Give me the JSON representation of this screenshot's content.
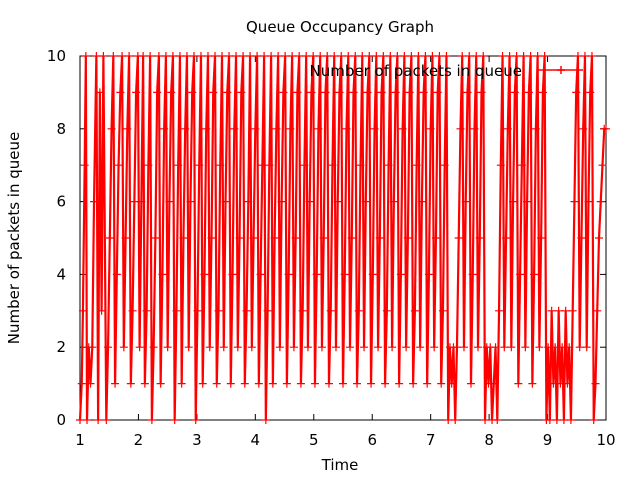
{
  "chart_data": {
    "type": "line",
    "title": "Queue Occupancy Graph",
    "xlabel": "Time",
    "ylabel": "Number of packets in queue",
    "xlim": [
      1,
      10
    ],
    "ylim": [
      0,
      10
    ],
    "x_ticks": [
      "1",
      "2",
      "3",
      "4",
      "5",
      "6",
      "7",
      "8",
      "9",
      "10"
    ],
    "y_ticks": [
      "0",
      "2",
      "4",
      "6",
      "8",
      "10"
    ],
    "grid": false,
    "legend_position": "top-right",
    "marker": "plus",
    "series": [
      {
        "name": "Number of packets in queue",
        "color": "#ff0000",
        "points": [
          [
            1.0,
            0
          ],
          [
            1.03,
            1
          ],
          [
            1.05,
            3
          ],
          [
            1.08,
            7
          ],
          [
            1.1,
            10
          ],
          [
            1.12,
            0
          ],
          [
            1.15,
            2
          ],
          [
            1.18,
            1
          ],
          [
            1.21,
            2
          ],
          [
            1.24,
            6
          ],
          [
            1.28,
            10
          ],
          [
            1.31,
            0
          ],
          [
            1.34,
            9
          ],
          [
            1.37,
            3
          ],
          [
            1.4,
            10
          ],
          [
            1.45,
            0
          ],
          [
            1.48,
            2
          ],
          [
            1.51,
            5
          ],
          [
            1.54,
            8
          ],
          [
            1.57,
            10
          ],
          [
            1.6,
            1
          ],
          [
            1.63,
            4
          ],
          [
            1.66,
            7
          ],
          [
            1.69,
            9
          ],
          [
            1.72,
            10
          ],
          [
            1.75,
            2
          ],
          [
            1.78,
            5
          ],
          [
            1.81,
            8
          ],
          [
            1.84,
            10
          ],
          [
            1.87,
            1
          ],
          [
            1.9,
            3
          ],
          [
            1.93,
            6
          ],
          [
            1.96,
            9
          ],
          [
            1.99,
            10
          ],
          [
            2.02,
            2
          ],
          [
            2.05,
            6
          ],
          [
            2.08,
            10
          ],
          [
            2.11,
            1
          ],
          [
            2.14,
            3
          ],
          [
            2.17,
            7
          ],
          [
            2.2,
            10
          ],
          [
            2.23,
            0
          ],
          [
            2.26,
            2
          ],
          [
            2.29,
            5
          ],
          [
            2.32,
            9
          ],
          [
            2.35,
            10
          ],
          [
            2.38,
            1
          ],
          [
            2.41,
            4
          ],
          [
            2.44,
            8
          ],
          [
            2.47,
            10
          ],
          [
            2.5,
            2
          ],
          [
            2.53,
            6
          ],
          [
            2.56,
            9
          ],
          [
            2.59,
            10
          ],
          [
            2.62,
            0
          ],
          [
            2.65,
            3
          ],
          [
            2.68,
            7
          ],
          [
            2.71,
            10
          ],
          [
            2.74,
            1
          ],
          [
            2.77,
            5
          ],
          [
            2.8,
            8
          ],
          [
            2.83,
            10
          ],
          [
            2.86,
            2
          ],
          [
            2.89,
            6
          ],
          [
            2.92,
            9
          ],
          [
            2.95,
            10
          ],
          [
            2.98,
            0
          ],
          [
            3.01,
            3
          ],
          [
            3.04,
            7
          ],
          [
            3.07,
            10
          ],
          [
            3.1,
            1
          ],
          [
            3.13,
            4
          ],
          [
            3.16,
            8
          ],
          [
            3.19,
            10
          ],
          [
            3.22,
            2
          ],
          [
            3.25,
            5
          ],
          [
            3.28,
            9
          ],
          [
            3.31,
            10
          ],
          [
            3.34,
            1
          ],
          [
            3.37,
            3
          ],
          [
            3.4,
            7
          ],
          [
            3.43,
            10
          ],
          [
            3.46,
            2
          ],
          [
            3.49,
            6
          ],
          [
            3.52,
            9
          ],
          [
            3.55,
            10
          ],
          [
            3.58,
            1
          ],
          [
            3.61,
            4
          ],
          [
            3.64,
            8
          ],
          [
            3.67,
            10
          ],
          [
            3.7,
            2
          ],
          [
            3.73,
            5
          ],
          [
            3.76,
            9
          ],
          [
            3.79,
            10
          ],
          [
            3.82,
            1
          ],
          [
            3.85,
            3
          ],
          [
            3.88,
            6
          ],
          [
            3.91,
            10
          ],
          [
            3.94,
            2
          ],
          [
            3.97,
            5
          ],
          [
            4.0,
            8
          ],
          [
            4.03,
            10
          ],
          [
            4.06,
            1
          ],
          [
            4.09,
            4
          ],
          [
            4.12,
            7
          ],
          [
            4.15,
            10
          ],
          [
            4.18,
            0
          ],
          [
            4.21,
            3
          ],
          [
            4.24,
            7
          ],
          [
            4.27,
            10
          ],
          [
            4.3,
            1
          ],
          [
            4.33,
            5
          ],
          [
            4.36,
            8
          ],
          [
            4.39,
            10
          ],
          [
            4.42,
            2
          ],
          [
            4.45,
            6
          ],
          [
            4.48,
            9
          ],
          [
            4.51,
            10
          ],
          [
            4.54,
            1
          ],
          [
            4.57,
            4
          ],
          [
            4.6,
            8
          ],
          [
            4.63,
            10
          ],
          [
            4.66,
            2
          ],
          [
            4.69,
            5
          ],
          [
            4.72,
            9
          ],
          [
            4.75,
            10
          ],
          [
            4.78,
            1
          ],
          [
            4.81,
            3
          ],
          [
            4.84,
            7
          ],
          [
            4.87,
            10
          ],
          [
            4.9,
            2
          ],
          [
            4.93,
            6
          ],
          [
            4.96,
            9
          ],
          [
            4.99,
            10
          ],
          [
            5.02,
            1
          ],
          [
            5.05,
            4
          ],
          [
            5.08,
            8
          ],
          [
            5.11,
            10
          ],
          [
            5.14,
            2
          ],
          [
            5.17,
            5
          ],
          [
            5.2,
            9
          ],
          [
            5.23,
            10
          ],
          [
            5.26,
            1
          ],
          [
            5.29,
            3
          ],
          [
            5.32,
            7
          ],
          [
            5.35,
            10
          ],
          [
            5.38,
            2
          ],
          [
            5.41,
            6
          ],
          [
            5.44,
            9
          ],
          [
            5.47,
            10
          ],
          [
            5.5,
            1
          ],
          [
            5.53,
            4
          ],
          [
            5.56,
            8
          ],
          [
            5.59,
            10
          ],
          [
            5.62,
            2
          ],
          [
            5.65,
            5
          ],
          [
            5.68,
            9
          ],
          [
            5.71,
            10
          ],
          [
            5.74,
            1
          ],
          [
            5.77,
            3
          ],
          [
            5.8,
            7
          ],
          [
            5.83,
            10
          ],
          [
            5.86,
            2
          ],
          [
            5.89,
            6
          ],
          [
            5.92,
            9
          ],
          [
            5.95,
            10
          ],
          [
            5.98,
            1
          ],
          [
            6.01,
            4
          ],
          [
            6.04,
            8
          ],
          [
            6.07,
            10
          ],
          [
            6.1,
            2
          ],
          [
            6.13,
            5
          ],
          [
            6.16,
            9
          ],
          [
            6.19,
            10
          ],
          [
            6.22,
            1
          ],
          [
            6.25,
            3
          ],
          [
            6.28,
            7
          ],
          [
            6.31,
            10
          ],
          [
            6.34,
            2
          ],
          [
            6.37,
            6
          ],
          [
            6.4,
            9
          ],
          [
            6.43,
            10
          ],
          [
            6.46,
            1
          ],
          [
            6.49,
            4
          ],
          [
            6.52,
            8
          ],
          [
            6.55,
            10
          ],
          [
            6.58,
            2
          ],
          [
            6.61,
            5
          ],
          [
            6.64,
            9
          ],
          [
            6.67,
            10
          ],
          [
            6.7,
            1
          ],
          [
            6.73,
            3
          ],
          [
            6.76,
            7
          ],
          [
            6.79,
            10
          ],
          [
            6.82,
            2
          ],
          [
            6.85,
            6
          ],
          [
            6.88,
            9
          ],
          [
            6.91,
            10
          ],
          [
            6.94,
            1
          ],
          [
            6.97,
            4
          ],
          [
            7.0,
            8
          ],
          [
            7.03,
            10
          ],
          [
            7.06,
            2
          ],
          [
            7.09,
            5
          ],
          [
            7.12,
            9
          ],
          [
            7.15,
            10
          ],
          [
            7.18,
            1
          ],
          [
            7.21,
            3
          ],
          [
            7.24,
            7
          ],
          [
            7.27,
            10
          ],
          [
            7.3,
            0
          ],
          [
            7.33,
            2
          ],
          [
            7.36,
            1
          ],
          [
            7.39,
            2
          ],
          [
            7.42,
            0
          ],
          [
            7.45,
            2
          ],
          [
            7.48,
            5
          ],
          [
            7.51,
            8
          ],
          [
            7.54,
            10
          ],
          [
            7.57,
            2
          ],
          [
            7.6,
            6
          ],
          [
            7.63,
            9
          ],
          [
            7.66,
            10
          ],
          [
            7.69,
            1
          ],
          [
            7.72,
            4
          ],
          [
            7.75,
            8
          ],
          [
            7.78,
            10
          ],
          [
            7.81,
            2
          ],
          [
            7.84,
            5
          ],
          [
            7.87,
            9
          ],
          [
            7.9,
            10
          ],
          [
            7.93,
            0
          ],
          [
            7.96,
            2
          ],
          [
            7.99,
            1
          ],
          [
            8.02,
            2
          ],
          [
            8.05,
            0
          ],
          [
            8.08,
            1
          ],
          [
            8.11,
            2
          ],
          [
            8.14,
            0
          ],
          [
            8.17,
            3
          ],
          [
            8.2,
            7
          ],
          [
            8.23,
            10
          ],
          [
            8.26,
            2
          ],
          [
            8.29,
            5
          ],
          [
            8.32,
            8
          ],
          [
            8.35,
            10
          ],
          [
            8.38,
            2
          ],
          [
            8.41,
            6
          ],
          [
            8.44,
            9
          ],
          [
            8.47,
            10
          ],
          [
            8.5,
            1
          ],
          [
            8.53,
            4
          ],
          [
            8.56,
            7
          ],
          [
            8.59,
            10
          ],
          [
            8.62,
            2
          ],
          [
            8.65,
            6
          ],
          [
            8.68,
            9
          ],
          [
            8.71,
            10
          ],
          [
            8.74,
            1
          ],
          [
            8.77,
            4
          ],
          [
            8.8,
            8
          ],
          [
            8.83,
            10
          ],
          [
            8.86,
            2
          ],
          [
            8.89,
            5
          ],
          [
            8.92,
            9
          ],
          [
            8.95,
            10
          ],
          [
            8.98,
            0
          ],
          [
            9.01,
            2
          ],
          [
            9.04,
            0
          ],
          [
            9.07,
            3
          ],
          [
            9.1,
            1
          ],
          [
            9.13,
            2
          ],
          [
            9.16,
            0
          ],
          [
            9.19,
            3
          ],
          [
            9.22,
            1
          ],
          [
            9.25,
            2
          ],
          [
            9.28,
            0
          ],
          [
            9.31,
            3
          ],
          [
            9.34,
            1
          ],
          [
            9.37,
            2
          ],
          [
            9.4,
            0
          ],
          [
            9.43,
            3
          ],
          [
            9.46,
            6
          ],
          [
            9.49,
            9
          ],
          [
            9.52,
            10
          ],
          [
            9.55,
            2
          ],
          [
            9.58,
            5
          ],
          [
            9.61,
            8
          ],
          [
            9.64,
            10
          ],
          [
            9.67,
            2
          ],
          [
            9.7,
            6
          ],
          [
            9.73,
            9
          ],
          [
            9.76,
            10
          ],
          [
            9.79,
            0
          ],
          [
            9.82,
            1
          ],
          [
            9.85,
            3
          ],
          [
            9.88,
            5
          ],
          [
            9.91,
            6
          ],
          [
            9.94,
            7
          ],
          [
            9.97,
            8
          ],
          [
            10.0,
            8
          ]
        ]
      }
    ]
  }
}
